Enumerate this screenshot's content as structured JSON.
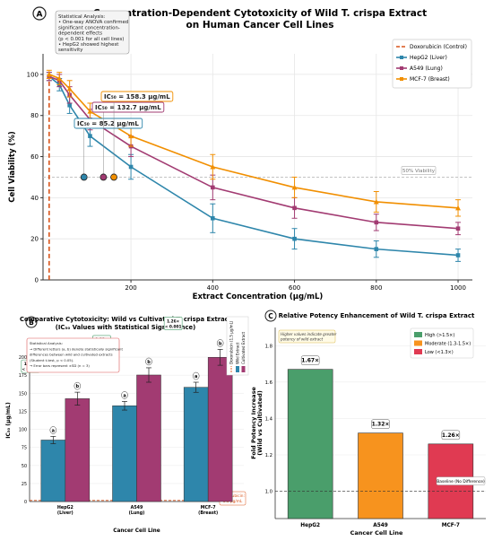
{
  "figure": {
    "panel_a_label": "A",
    "panel_b_label": "B",
    "panel_c_label": "C"
  },
  "chart_data": [
    {
      "id": "A",
      "type": "line",
      "title": "Concentration-Dependent Cytotoxicity of Wild T. crispa Extract",
      "subtitle": "on Human Cancer Cell Lines",
      "xlabel": "Extract Concentration (μg/mL)",
      "ylabel": "Cell Viability (%)",
      "xlim": [
        -15,
        1035
      ],
      "ylim": [
        0,
        110
      ],
      "xticks": [
        200,
        400,
        600,
        800,
        1000
      ],
      "yticks": [
        0,
        20,
        40,
        60,
        80,
        100
      ],
      "grid": true,
      "legend_position": "top-right",
      "reference_line": {
        "label": "Doxorubicin (Control)",
        "x": 0,
        "color": "#d9541a"
      },
      "threshold_line": {
        "y": 50,
        "label": "50% Viability"
      },
      "series": [
        {
          "name": "HepG2 (Liver)",
          "color": "#2e86ab",
          "x": [
            0,
            25,
            50,
            100,
            200,
            400,
            600,
            800,
            1000
          ],
          "values": [
            99,
            95,
            85,
            70,
            55,
            30,
            20,
            15,
            12
          ],
          "errors": [
            2,
            3,
            4,
            5,
            6,
            7,
            5,
            4,
            3
          ]
        },
        {
          "name": "A549 (Lung)",
          "color": "#a23b72",
          "x": [
            0,
            25,
            50,
            100,
            200,
            400,
            600,
            800,
            1000
          ],
          "values": [
            99,
            97,
            90,
            78,
            65,
            45,
            35,
            28,
            25
          ],
          "errors": [
            2,
            3,
            4,
            5,
            5,
            6,
            5,
            4,
            3
          ]
        },
        {
          "name": "MCF-7 (Breast)",
          "color": "#f18f01",
          "x": [
            0,
            25,
            50,
            100,
            200,
            400,
            600,
            800,
            1000
          ],
          "values": [
            100,
            98,
            93,
            82,
            70,
            55,
            45,
            38,
            35
          ],
          "errors": [
            2,
            3,
            4,
            4,
            5,
            6,
            5,
            5,
            4
          ]
        }
      ],
      "ic50_markers": [
        {
          "label": "IC₅₀ = 85.2 μg/mL",
          "x": 85.2,
          "y": 50,
          "color": "#2e86ab"
        },
        {
          "label": "IC₅₀ = 132.7 μg/mL",
          "x": 132.7,
          "y": 50,
          "color": "#a23b72"
        },
        {
          "label": "IC₅₀ = 158.3 μg/mL",
          "x": 158.3,
          "y": 50,
          "color": "#f18f01"
        }
      ],
      "stats_box": [
        "Statistical Analysis:",
        "• One-way ANOVA confirmed",
        "  significant concentration-",
        "  dependent effects",
        "  (p < 0.001 for all cell lines)",
        "• HepG2 showed highest",
        "  sensitivity"
      ]
    },
    {
      "id": "B",
      "type": "bar",
      "title": "Comparative Cytotoxicity: Wild vs Cultivated T. crispa Extract",
      "subtitle": "(IC₅₀ Values with Statistical Significance)",
      "xlabel": "Cancer Cell Line",
      "ylabel": "IC₅₀ (μg/mL)",
      "ylim": [
        0,
        225
      ],
      "yticks": [
        0,
        25,
        50,
        75,
        100,
        125,
        150,
        175,
        200
      ],
      "categories": [
        "HepG2\n(Liver)",
        "A549\n(Lung)",
        "MCF-7\n(Breast)"
      ],
      "series": [
        {
          "name": "Wild Extract",
          "color": "#2e86ab",
          "values": [
            85.2,
            132.7,
            158.3
          ],
          "errors": [
            5,
            6,
            7
          ],
          "letters": [
            "a",
            "a",
            "a"
          ]
        },
        {
          "name": "Cultivated Extract",
          "color": "#a23b72",
          "values": [
            142.5,
            175.3,
            199.8
          ],
          "errors": [
            9,
            10,
            11
          ],
          "letters": [
            "b",
            "b",
            "b"
          ]
        }
      ],
      "legend_extra": "Doxorubicin (1.5 μg/mL)",
      "reference_line": {
        "y": 1.5,
        "label": "Doxorubicin:\n1.5 μg/mL",
        "color": "#d9541a"
      },
      "fold_labels": [
        "1.67×\n< 0.001",
        "1.32×\n< 0.001",
        "1.26×\n< 0.001"
      ],
      "stats_box": [
        "Statistical Analysis:",
        "→ Different letters (a, b) denote statistically significant",
        "  differences between wild and cultivated extracts",
        "  (Student   t-test, p < 0.05).",
        "→ Error bars represent ±SD (n = 3)"
      ]
    },
    {
      "id": "C",
      "type": "bar",
      "title": "Relative Potency Enhancement of Wild T. crispa Extract",
      "xlabel": "Cancer Cell Line",
      "ylabel": "Fold Potency Increase\n(Wild vs Cultivated)",
      "ylim": [
        0.85,
        1.9
      ],
      "yticks": [
        1.0,
        1.2,
        1.4,
        1.6,
        1.8
      ],
      "categories": [
        "HepG2",
        "A549",
        "MCF-7"
      ],
      "values": [
        1.67,
        1.32,
        1.26
      ],
      "value_labels": [
        "1.67×",
        "1.32×",
        "1.26×"
      ],
      "colors": [
        "#4a9e6b",
        "#f7931e",
        "#e03a52"
      ],
      "baseline": {
        "y": 1.0,
        "label": "Baseline (No Difference)"
      },
      "legend": [
        {
          "label": "High (>1.5×)",
          "color": "#4a9e6b"
        },
        {
          "label": "Moderate (1.3-1.5×)",
          "color": "#f7931e"
        },
        {
          "label": "Low (<1.3×)",
          "color": "#e03a52"
        }
      ],
      "note": "Higher values indicate greater\npotency of wild extract"
    }
  ]
}
